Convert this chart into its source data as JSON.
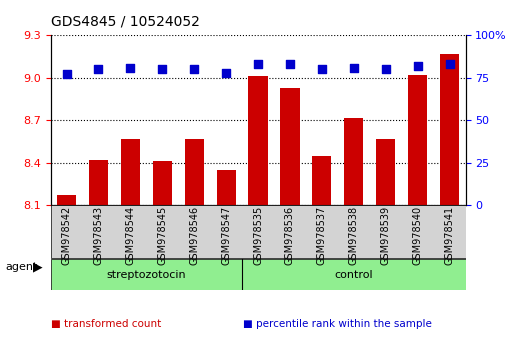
{
  "title": "GDS4845 / 10524052",
  "samples": [
    "GSM978542",
    "GSM978543",
    "GSM978544",
    "GSM978545",
    "GSM978546",
    "GSM978547",
    "GSM978535",
    "GSM978536",
    "GSM978537",
    "GSM978538",
    "GSM978539",
    "GSM978540",
    "GSM978541"
  ],
  "bar_values": [
    8.17,
    8.42,
    8.57,
    8.41,
    8.57,
    8.35,
    9.01,
    8.93,
    8.45,
    8.72,
    8.57,
    9.02,
    9.17
  ],
  "dot_values": [
    77,
    80,
    81,
    80,
    80,
    78,
    83,
    83,
    80,
    81,
    80,
    82,
    83
  ],
  "bar_color": "#cc0000",
  "dot_color": "#0000cc",
  "ylim_left": [
    8.1,
    9.3
  ],
  "ylim_right": [
    0,
    100
  ],
  "yticks_left": [
    8.1,
    8.4,
    8.7,
    9.0,
    9.3
  ],
  "yticks_right": [
    0,
    25,
    50,
    75,
    100
  ],
  "groups": [
    {
      "label": "streptozotocin",
      "start": 0,
      "end": 6,
      "color": "#90ee90"
    },
    {
      "label": "control",
      "start": 6,
      "end": 13,
      "color": "#90ee90"
    }
  ],
  "agent_label": "agent",
  "legend_items": [
    {
      "label": "transformed count",
      "color": "#cc0000"
    },
    {
      "label": "percentile rank within the sample",
      "color": "#0000cc"
    }
  ],
  "grid_color": "#000000",
  "background_color": "#ffffff",
  "bar_width": 0.6,
  "dot_size": 40
}
